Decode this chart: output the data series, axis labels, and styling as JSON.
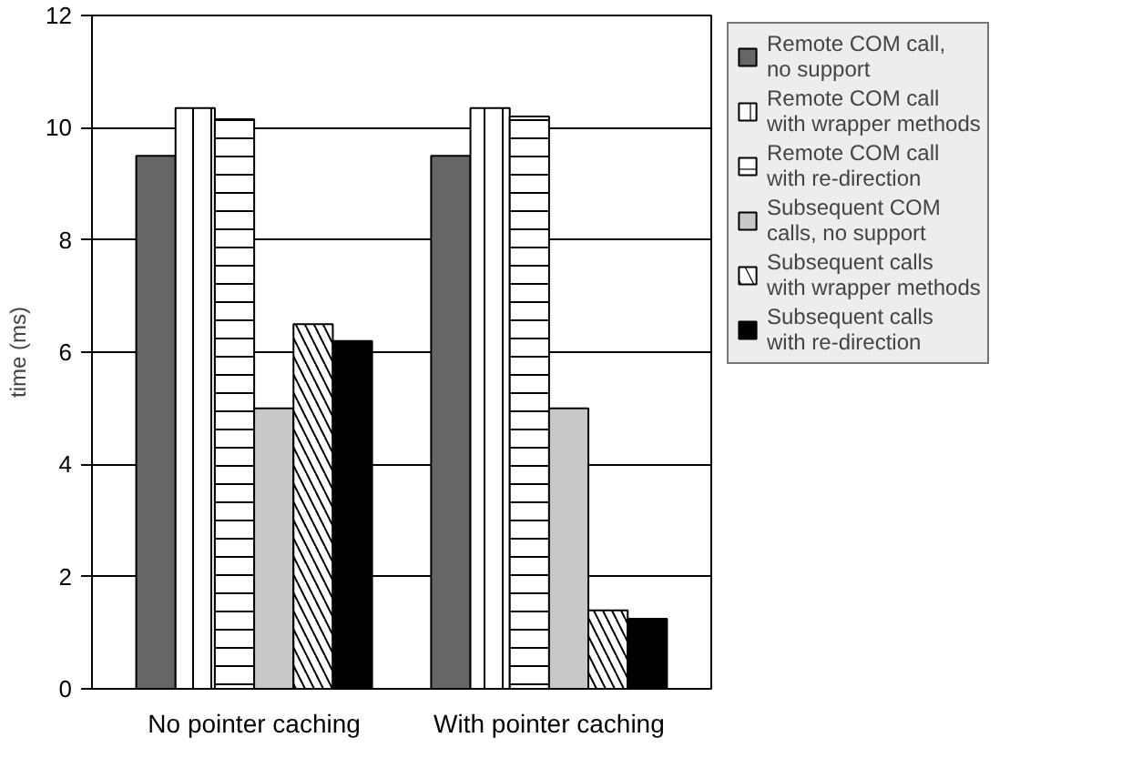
{
  "chart_data": {
    "type": "bar",
    "ylabel": "time (ms)",
    "categories": [
      "No pointer caching",
      "With pointer caching"
    ],
    "series": [
      {
        "name": "Remote COM call,\nno support",
        "color": "#666666",
        "values": [
          9.5,
          9.5
        ]
      },
      {
        "name": "Remote COM call\nwith wrapper methods",
        "color": "#ffffff",
        "values": [
          10.35,
          10.35
        ]
      },
      {
        "name": "Remote COM call\nwith re-direction",
        "color": "#ffffff",
        "values": [
          10.15,
          10.2
        ]
      },
      {
        "name": "Subsequent COM\ncalls, no support",
        "color": "#c8c8c8",
        "values": [
          5.0,
          5.0
        ]
      },
      {
        "name": "Subsequent calls\nwith wrapper methods",
        "color": "#ffffff",
        "values": [
          6.5,
          1.4
        ]
      },
      {
        "name": "Subsequent calls\nwith re-direction",
        "color": "#000000",
        "values": [
          6.2,
          1.25
        ]
      }
    ],
    "ylim": [
      0,
      12
    ],
    "yticks": [
      0,
      2,
      4,
      6,
      8,
      10,
      12
    ],
    "grid": "y",
    "legend": "right"
  }
}
